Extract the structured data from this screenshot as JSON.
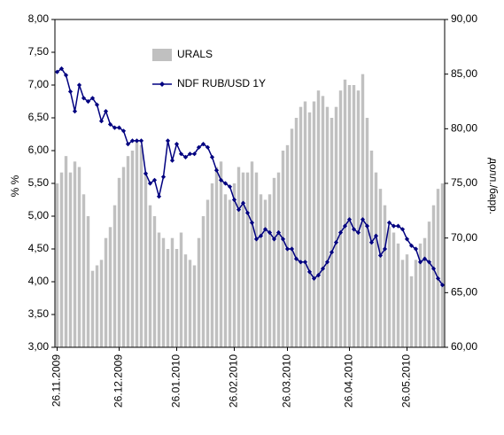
{
  "chart_data": {
    "type": "bar",
    "categories": [
      "26.11.2009",
      null,
      null,
      null,
      null,
      null,
      null,
      null,
      null,
      null,
      null,
      null,
      null,
      null,
      "26.12.2009",
      null,
      null,
      null,
      null,
      null,
      null,
      null,
      null,
      null,
      null,
      null,
      null,
      "26.01.2010",
      null,
      null,
      null,
      null,
      null,
      null,
      null,
      null,
      null,
      null,
      null,
      null,
      "26.02.2010",
      null,
      null,
      null,
      null,
      null,
      null,
      null,
      null,
      null,
      null,
      null,
      "26.03.2010",
      null,
      null,
      null,
      null,
      null,
      null,
      null,
      null,
      null,
      null,
      null,
      null,
      null,
      "26.04.2010",
      null,
      null,
      null,
      null,
      null,
      null,
      null,
      null,
      null,
      null,
      null,
      null,
      "26.05.2010",
      null,
      null,
      null,
      null,
      null,
      null,
      null,
      null
    ],
    "series": [
      {
        "name": "URALS",
        "type": "bar",
        "axis": "y2",
        "color": "#c0c0c0",
        "values": [
          75,
          76,
          77.5,
          76,
          77,
          76.5,
          74,
          72,
          67,
          67.5,
          68,
          70,
          71,
          73,
          75.5,
          76.5,
          77.5,
          78,
          79,
          78.5,
          76,
          73,
          72,
          70.5,
          70,
          69,
          70,
          69,
          70.5,
          68.5,
          68,
          67.5,
          70,
          72,
          73.5,
          75,
          76.5,
          77,
          74,
          73.5,
          75,
          76.5,
          76,
          76,
          77,
          76,
          74,
          73.5,
          74,
          75.5,
          76,
          78,
          78.5,
          80,
          81,
          82,
          82.5,
          81.5,
          82.5,
          83.5,
          83,
          82,
          81,
          82,
          83.5,
          84.5,
          84,
          84,
          83.5,
          85,
          81,
          78,
          76,
          74.5,
          73,
          71,
          70.5,
          69.5,
          68,
          68.5,
          66.5,
          68,
          69.5,
          70,
          71.5,
          73,
          74.5,
          75
        ]
      },
      {
        "name": "NDF RUB/USD 1Y",
        "type": "line",
        "color": "#000080",
        "values": [
          7.2,
          7.25,
          7.15,
          6.9,
          6.6,
          7.0,
          6.8,
          6.75,
          6.8,
          6.7,
          6.45,
          6.6,
          6.4,
          6.35,
          6.35,
          6.3,
          6.1,
          6.15,
          6.15,
          6.15,
          5.65,
          5.5,
          5.55,
          5.3,
          5.6,
          6.15,
          5.85,
          6.1,
          5.95,
          5.9,
          5.95,
          5.95,
          6.05,
          6.1,
          6.05,
          5.9,
          5.7,
          5.55,
          5.5,
          5.45,
          5.25,
          5.1,
          5.2,
          5.05,
          4.9,
          4.65,
          4.7,
          4.8,
          4.75,
          4.65,
          4.75,
          4.65,
          4.5,
          4.5,
          4.35,
          4.3,
          4.3,
          4.15,
          4.05,
          4.1,
          4.2,
          4.3,
          4.45,
          4.6,
          4.75,
          4.85,
          4.95,
          4.8,
          4.75,
          4.95,
          4.85,
          4.6,
          4.7,
          4.4,
          4.5,
          4.9,
          4.85,
          4.85,
          4.8,
          4.65,
          4.55,
          4.5,
          4.3,
          4.35,
          4.3,
          4.2,
          4.05,
          3.95
        ]
      }
    ],
    "y_label": "% %",
    "y2_label": "долл./барр.",
    "ylim": [
      3,
      8
    ],
    "yticks": [
      {
        "value": 3,
        "label": "3,00"
      },
      {
        "value": 3.5,
        "label": "3,50"
      },
      {
        "value": 4,
        "label": "4,00"
      },
      {
        "value": 4.5,
        "label": "4,50"
      },
      {
        "value": 5,
        "label": "5,00"
      },
      {
        "value": 5.5,
        "label": "5,50"
      },
      {
        "value": 6,
        "label": "6,00"
      },
      {
        "value": 6.5,
        "label": "6,50"
      },
      {
        "value": 7,
        "label": "7,00"
      },
      {
        "value": 7.5,
        "label": "7,50"
      },
      {
        "value": 8,
        "label": "8,00"
      }
    ],
    "y2lim": [
      60,
      90
    ],
    "y2ticks": [
      {
        "value": 60,
        "label": "60,00"
      },
      {
        "value": 65,
        "label": "65,00"
      },
      {
        "value": 70,
        "label": "70,00"
      },
      {
        "value": 75,
        "label": "75,00"
      },
      {
        "value": 80,
        "label": "80,00"
      },
      {
        "value": 85,
        "label": "85,00"
      },
      {
        "value": 90,
        "label": "90,00"
      }
    ],
    "grid": false,
    "legend": "top"
  }
}
